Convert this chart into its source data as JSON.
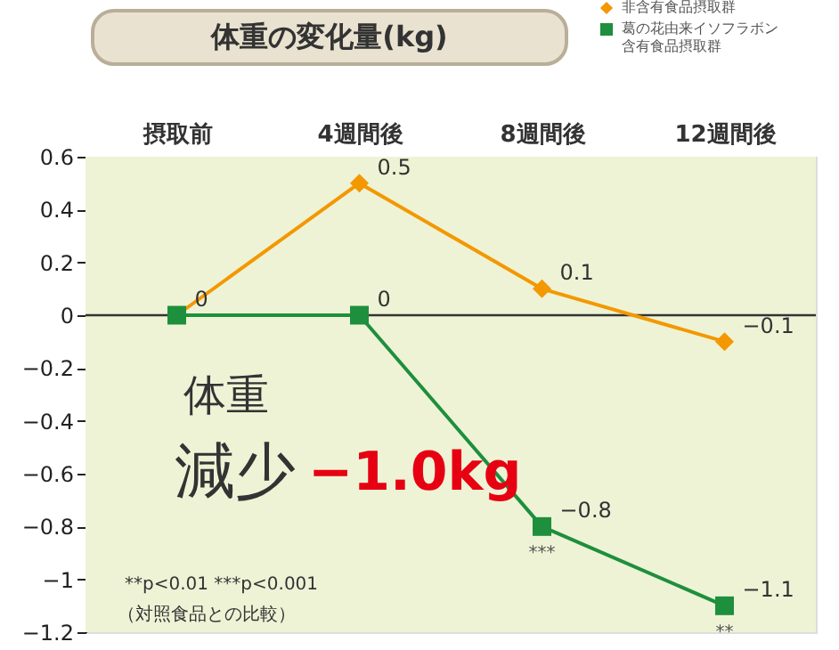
{
  "chart_data": {
    "type": "line",
    "title": "体重の変化量(kg)",
    "categories": [
      "摂取前",
      "4週間後",
      "8週間後",
      "12週間後"
    ],
    "series": [
      {
        "name": "非含有食品摂取群",
        "color": "#f39800",
        "marker": "diamond",
        "values": [
          0,
          0.5,
          0.1,
          -0.1
        ],
        "value_labels": [
          null,
          "0.5",
          "0.1",
          "−0.1"
        ]
      },
      {
        "name": "葛の花由来イソフラボン含有食品摂取群",
        "color": "#1e8f3c",
        "marker": "square",
        "values": [
          0,
          0,
          -0.8,
          -1.1
        ],
        "value_labels": [
          "0",
          "0",
          "−0.8",
          "−1.1"
        ]
      }
    ],
    "ylim": [
      -1.2,
      0.6
    ],
    "yticks": [
      0.6,
      0.4,
      0.2,
      0,
      {
        "value": -0.2,
        "label": "−0.2"
      },
      {
        "value": -0.4,
        "label": "−0.4"
      },
      {
        "value": -0.6,
        "label": "−0.6"
      },
      {
        "value": -0.8,
        "label": "−0.8"
      },
      {
        "value": -1,
        "label": "−1"
      },
      {
        "value": -1.2,
        "label": "−1.2"
      }
    ],
    "ref_lines": [
      {
        "axis": "y",
        "value": 0,
        "color": "#333333"
      }
    ],
    "annotations": [
      "体重",
      "減少",
      "−1.0kg",
      "**p<0.01  ***p<0.001",
      "（対照食品との比較）",
      {
        "text": "***",
        "x": "8週間後",
        "y": -0.8
      },
      {
        "text": "**",
        "x": "12週間後",
        "y": -1.1
      }
    ],
    "legend": "top right",
    "line_style": "solid"
  }
}
